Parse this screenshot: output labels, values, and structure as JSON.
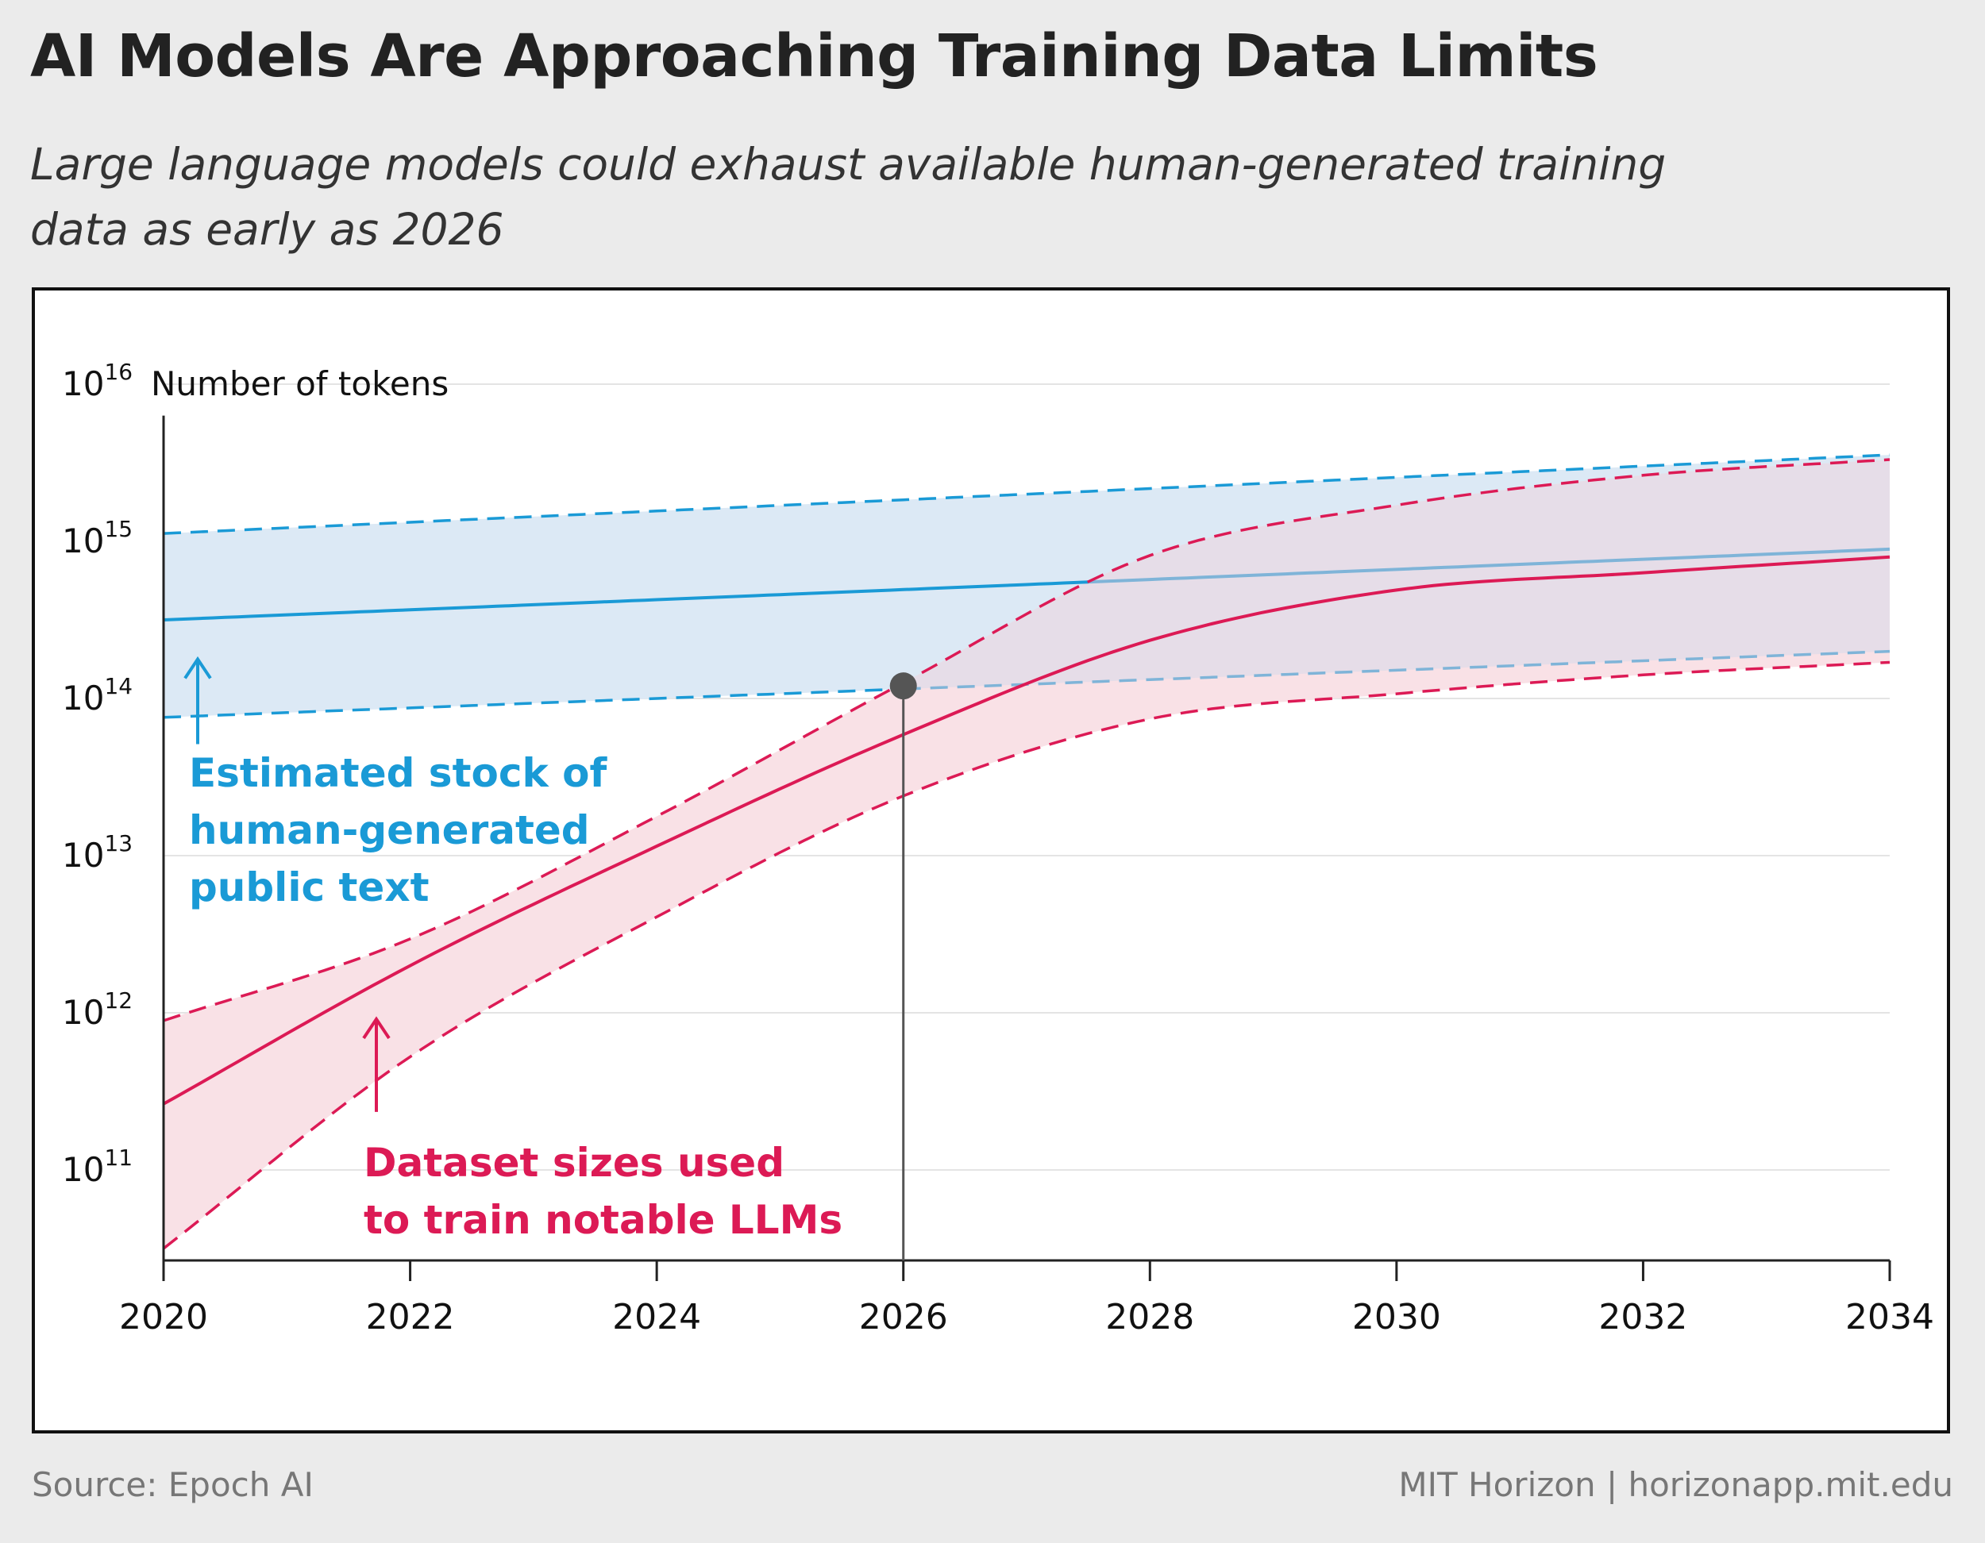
{
  "title": "AI Models Are Approaching Training Data Limits",
  "subtitle": "Large language models could exhaust available human-generated training data as early as 2026",
  "footer": {
    "source": "Source: Epoch AI",
    "credit": "MIT Horizon | horizonapp.mit.edu"
  },
  "colors": {
    "stock": "#1a9ad6",
    "stock_light": "#7fb4d8",
    "stock_fill": "#dce9f5",
    "dataset": "#dc1a55",
    "dataset_fill": "#f9e1e6",
    "overlap_fill": "#e6dde8",
    "marker": "#555555"
  },
  "chart_data": {
    "type": "line",
    "title": "AI Models Are Approaching Training Data Limits",
    "ylabel": "Number of tokens",
    "xlabel": "",
    "y_scale": "log",
    "xlim": [
      2020,
      2034
    ],
    "ylim_exponent": [
      10.5,
      16
    ],
    "x_ticks": [
      "2020",
      "2022",
      "2024",
      "2026",
      "2028",
      "2030",
      "2032",
      "2034"
    ],
    "y_ticks": [
      {
        "base": "10",
        "exp": "11"
      },
      {
        "base": "10",
        "exp": "12"
      },
      {
        "base": "10",
        "exp": "13"
      },
      {
        "base": "10",
        "exp": "14"
      },
      {
        "base": "10",
        "exp": "15"
      },
      {
        "base": "10",
        "exp": "16"
      }
    ],
    "series": [
      {
        "name": "Estimated stock of human-generated public text",
        "x": [
          2020,
          2034
        ],
        "median_log10": [
          14.5,
          14.95
        ],
        "upper_log10": [
          15.05,
          15.55
        ],
        "lower_log10": [
          13.88,
          14.3
        ]
      },
      {
        "name": "Dataset sizes used to train notable LLMs",
        "x": [
          2020,
          2022,
          2024,
          2026,
          2028,
          2030,
          2032,
          2034
        ],
        "median_log10": [
          11.42,
          12.3,
          13.06,
          13.77,
          14.37,
          14.69,
          14.8,
          14.9
        ],
        "upper_log10": [
          11.95,
          12.47,
          13.25,
          14.1,
          14.91,
          15.23,
          15.42,
          15.52
        ],
        "lower_log10": [
          10.5,
          11.72,
          12.61,
          13.38,
          13.87,
          14.03,
          14.15,
          14.23
        ]
      }
    ],
    "marker": {
      "x": 2026,
      "y_log10": 14.08
    },
    "annotations": {
      "stock": [
        "Estimated stock of",
        "human-generated",
        "public text"
      ],
      "dataset": [
        "Dataset sizes used",
        "to train notable LLMs"
      ]
    }
  }
}
